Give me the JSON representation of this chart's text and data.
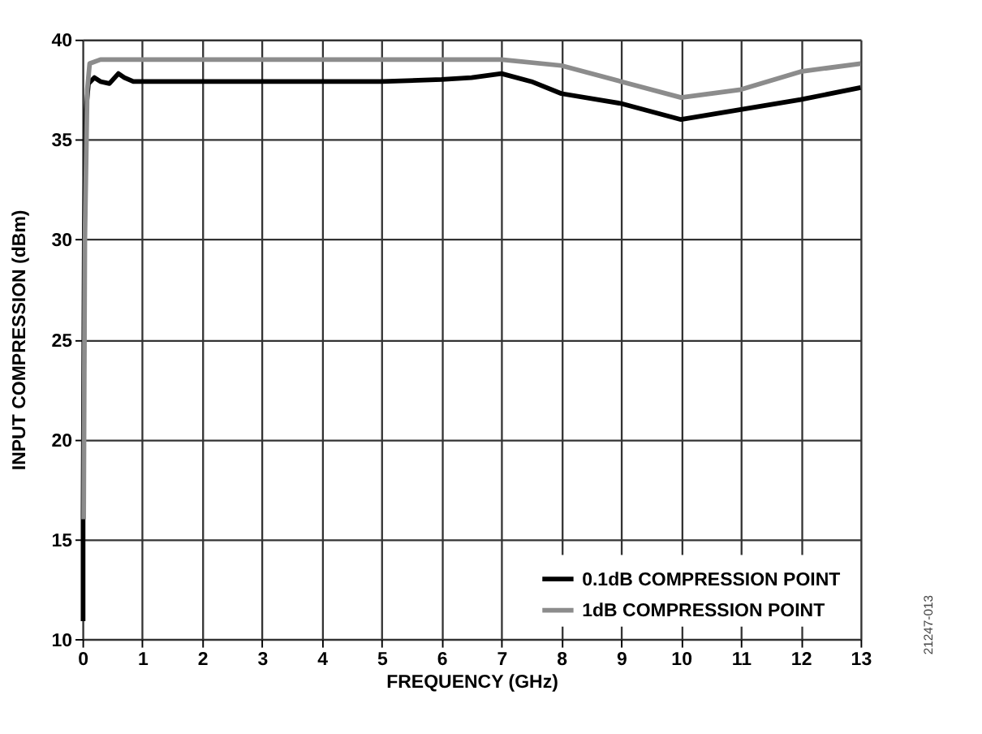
{
  "chart_data": {
    "type": "line",
    "xlabel": "FREQUENCY (GHz)",
    "ylabel": "INPUT COMPRESSION (dBm)",
    "xlim": [
      0,
      13
    ],
    "ylim": [
      10,
      40
    ],
    "xticks": [
      0,
      1,
      2,
      3,
      4,
      5,
      6,
      7,
      8,
      9,
      10,
      11,
      12,
      13
    ],
    "yticks": [
      10,
      15,
      20,
      25,
      30,
      35,
      40
    ],
    "grid": true,
    "legend": "bottom right",
    "line_style": "solid",
    "marker": "none",
    "series": [
      {
        "name": "0.1dB COMPRESSION POINT",
        "color": "#000000",
        "x": [
          0.01,
          0.01,
          0.03,
          0.06,
          0.1,
          0.2,
          0.3,
          0.45,
          0.6,
          0.7,
          0.85,
          1,
          2,
          3,
          4,
          5,
          6,
          6.5,
          7,
          7.5,
          8,
          9,
          10,
          11,
          12,
          13
        ],
        "values": [
          10.9,
          16.2,
          30,
          36.5,
          37.8,
          38.1,
          37.9,
          37.8,
          38.3,
          38.1,
          37.9,
          37.9,
          37.9,
          37.9,
          37.9,
          37.9,
          38.0,
          38.1,
          38.3,
          37.9,
          37.3,
          36.8,
          36.0,
          36.5,
          37.0,
          37.6
        ]
      },
      {
        "name": "1dB COMPRESSION POINT",
        "color": "#8c8c8c",
        "x": [
          0.02,
          0.04,
          0.08,
          0.12,
          0.3,
          1,
          2,
          3,
          4,
          5,
          6,
          7,
          8,
          9,
          10,
          11,
          12,
          13
        ],
        "values": [
          16.0,
          30,
          37.5,
          38.8,
          39.0,
          39.0,
          39.0,
          39.0,
          39.0,
          39.0,
          39.0,
          39.0,
          38.7,
          37.9,
          37.1,
          37.5,
          38.4,
          38.8
        ]
      }
    ],
    "annotations": [
      "21247-013"
    ]
  }
}
